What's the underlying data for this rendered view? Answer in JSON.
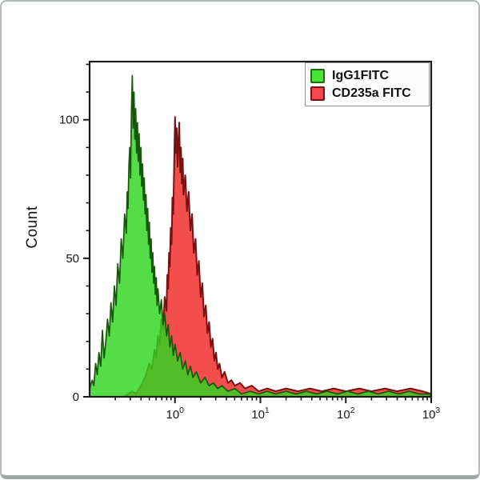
{
  "window": {
    "background": "#ffffff",
    "card_border_color": "#b3bcb8",
    "card_border_bottom_color": "#9daaa4"
  },
  "chart_data": {
    "type": "area",
    "subtype": "flow-cytometry-overlay-histogram",
    "title": "",
    "xlabel": "",
    "ylabel": "Count",
    "x_scale": "log10",
    "x_log_range": [
      -1,
      3
    ],
    "ylim": [
      0,
      121
    ],
    "grid": false,
    "frame_color": "#1a1a1a",
    "tick_color": "#1a1a1a",
    "tick_label_color": "#161616",
    "x_tick_base": "10",
    "x_major_tick_exponents": [
      "0",
      "1",
      "2",
      "3"
    ],
    "x_minor_tick_decades": [
      -1,
      0,
      1,
      2
    ],
    "y_major_ticks": [
      {
        "value": 0,
        "label": "0"
      },
      {
        "value": 50,
        "label": "50"
      },
      {
        "value": 100,
        "label": "100"
      }
    ],
    "y_minor_tick_step": 10,
    "legend": {
      "position": "top-right",
      "entries": [
        {
          "key": "igg1-fitc",
          "label": "IgG1FITC",
          "color": "#4ae437",
          "edge": "#1d6a10"
        },
        {
          "key": "cd235a-fitc",
          "label": "CD235a FITC",
          "color": "#f4474f",
          "edge": "#7a1111"
        }
      ]
    },
    "series": [
      {
        "key": "cd235a-histogram",
        "name": "CD235a FITC",
        "peak_log_x": 0.0,
        "peak_count": 101,
        "color": "#f34e4e",
        "edge": "#7a1111",
        "alpha": 1,
        "edge_width": 2,
        "points": [
          [
            -1.0,
            0
          ],
          [
            -0.6,
            0
          ],
          [
            -0.55,
            1
          ],
          [
            -0.5,
            2
          ],
          [
            -0.46,
            1
          ],
          [
            -0.42,
            3
          ],
          [
            -0.38,
            5
          ],
          [
            -0.34,
            8
          ],
          [
            -0.3,
            12
          ],
          [
            -0.27,
            10
          ],
          [
            -0.24,
            17
          ],
          [
            -0.22,
            14
          ],
          [
            -0.2,
            22
          ],
          [
            -0.18,
            19
          ],
          [
            -0.16,
            28
          ],
          [
            -0.14,
            24
          ],
          [
            -0.12,
            36
          ],
          [
            -0.1,
            31
          ],
          [
            -0.09,
            44
          ],
          [
            -0.08,
            39
          ],
          [
            -0.07,
            52
          ],
          [
            -0.06,
            47
          ],
          [
            -0.05,
            61
          ],
          [
            -0.04,
            55
          ],
          [
            -0.03,
            72
          ],
          [
            -0.02,
            66
          ],
          [
            -0.01,
            84
          ],
          [
            0.0,
            101
          ],
          [
            0.01,
            88
          ],
          [
            0.02,
            97
          ],
          [
            0.03,
            83
          ],
          [
            0.04,
            92
          ],
          [
            0.05,
            99
          ],
          [
            0.06,
            81
          ],
          [
            0.07,
            90
          ],
          [
            0.08,
            77
          ],
          [
            0.09,
            86
          ],
          [
            0.1,
            73
          ],
          [
            0.12,
            80
          ],
          [
            0.14,
            67
          ],
          [
            0.16,
            74
          ],
          [
            0.18,
            60
          ],
          [
            0.2,
            66
          ],
          [
            0.22,
            52
          ],
          [
            0.24,
            57
          ],
          [
            0.26,
            44
          ],
          [
            0.28,
            49
          ],
          [
            0.3,
            36
          ],
          [
            0.32,
            41
          ],
          [
            0.34,
            29
          ],
          [
            0.36,
            33
          ],
          [
            0.38,
            23
          ],
          [
            0.4,
            27
          ],
          [
            0.42,
            18
          ],
          [
            0.44,
            21
          ],
          [
            0.46,
            13
          ],
          [
            0.48,
            16
          ],
          [
            0.5,
            10
          ],
          [
            0.52,
            12
          ],
          [
            0.55,
            7
          ],
          [
            0.58,
            9
          ],
          [
            0.62,
            5
          ],
          [
            0.66,
            6
          ],
          [
            0.7,
            4
          ],
          [
            0.76,
            5
          ],
          [
            0.82,
            3
          ],
          [
            0.9,
            4
          ],
          [
            0.98,
            2
          ],
          [
            1.08,
            3
          ],
          [
            1.18,
            2
          ],
          [
            1.3,
            3
          ],
          [
            1.44,
            2
          ],
          [
            1.58,
            3
          ],
          [
            1.72,
            2
          ],
          [
            1.86,
            3
          ],
          [
            2.0,
            2
          ],
          [
            2.16,
            3
          ],
          [
            2.3,
            2
          ],
          [
            2.46,
            3
          ],
          [
            2.6,
            2
          ],
          [
            2.76,
            3
          ],
          [
            2.9,
            2
          ],
          [
            3.0,
            1
          ]
        ]
      },
      {
        "key": "igg1-histogram",
        "name": "IgG1FITC",
        "peak_log_x": -0.5,
        "peak_count": 116,
        "color": "#2fd51f",
        "edge": "#17570a",
        "alpha": 0.82,
        "edge_width": 1.7,
        "points": [
          [
            -1.0,
            3
          ],
          [
            -0.97,
            6
          ],
          [
            -0.95,
            4
          ],
          [
            -0.93,
            12
          ],
          [
            -0.91,
            8
          ],
          [
            -0.89,
            16
          ],
          [
            -0.87,
            11
          ],
          [
            -0.85,
            24
          ],
          [
            -0.83,
            14
          ],
          [
            -0.81,
            20
          ],
          [
            -0.79,
            28
          ],
          [
            -0.77,
            22
          ],
          [
            -0.75,
            34
          ],
          [
            -0.73,
            27
          ],
          [
            -0.71,
            40
          ],
          [
            -0.69,
            33
          ],
          [
            -0.67,
            48
          ],
          [
            -0.65,
            41
          ],
          [
            -0.63,
            57
          ],
          [
            -0.61,
            50
          ],
          [
            -0.59,
            66
          ],
          [
            -0.57,
            59
          ],
          [
            -0.56,
            74
          ],
          [
            -0.55,
            68
          ],
          [
            -0.54,
            83
          ],
          [
            -0.53,
            90
          ],
          [
            -0.52,
            79
          ],
          [
            -0.51,
            103
          ],
          [
            -0.5,
            116
          ],
          [
            -0.49,
            97
          ],
          [
            -0.48,
            110
          ],
          [
            -0.47,
            93
          ],
          [
            -0.46,
            104
          ],
          [
            -0.45,
            88
          ],
          [
            -0.44,
            99
          ],
          [
            -0.43,
            85
          ],
          [
            -0.42,
            95
          ],
          [
            -0.41,
            80
          ],
          [
            -0.4,
            90
          ],
          [
            -0.39,
            76
          ],
          [
            -0.38,
            84
          ],
          [
            -0.37,
            71
          ],
          [
            -0.36,
            79
          ],
          [
            -0.35,
            66
          ],
          [
            -0.34,
            73
          ],
          [
            -0.33,
            60
          ],
          [
            -0.32,
            68
          ],
          [
            -0.31,
            55
          ],
          [
            -0.3,
            63
          ],
          [
            -0.29,
            50
          ],
          [
            -0.28,
            57
          ],
          [
            -0.27,
            45
          ],
          [
            -0.26,
            52
          ],
          [
            -0.25,
            41
          ],
          [
            -0.24,
            47
          ],
          [
            -0.23,
            37
          ],
          [
            -0.22,
            43
          ],
          [
            -0.21,
            33
          ],
          [
            -0.2,
            39
          ],
          [
            -0.18,
            30
          ],
          [
            -0.16,
            35
          ],
          [
            -0.14,
            26
          ],
          [
            -0.12,
            30
          ],
          [
            -0.1,
            22
          ],
          [
            -0.08,
            26
          ],
          [
            -0.06,
            18
          ],
          [
            -0.04,
            22
          ],
          [
            -0.02,
            15
          ],
          [
            0.0,
            19
          ],
          [
            0.03,
            13
          ],
          [
            0.06,
            16
          ],
          [
            0.09,
            10
          ],
          [
            0.12,
            13
          ],
          [
            0.15,
            8
          ],
          [
            0.18,
            11
          ],
          [
            0.21,
            7
          ],
          [
            0.25,
            9
          ],
          [
            0.3,
            5
          ],
          [
            0.35,
            7
          ],
          [
            0.4,
            4
          ],
          [
            0.45,
            5
          ],
          [
            0.5,
            3
          ],
          [
            0.55,
            4
          ],
          [
            0.62,
            2
          ],
          [
            0.7,
            3
          ],
          [
            0.78,
            1
          ],
          [
            0.88,
            2
          ],
          [
            0.98,
            1
          ],
          [
            1.08,
            2
          ],
          [
            1.18,
            1
          ],
          [
            1.3,
            2
          ],
          [
            1.42,
            1
          ],
          [
            1.54,
            2
          ],
          [
            1.66,
            1
          ],
          [
            1.78,
            2
          ],
          [
            1.9,
            1
          ],
          [
            2.02,
            2
          ],
          [
            2.14,
            1
          ],
          [
            2.26,
            2
          ],
          [
            2.38,
            1
          ],
          [
            2.5,
            2
          ],
          [
            2.62,
            1
          ],
          [
            2.74,
            2
          ],
          [
            2.86,
            1
          ],
          [
            3.0,
            1
          ]
        ]
      }
    ]
  }
}
